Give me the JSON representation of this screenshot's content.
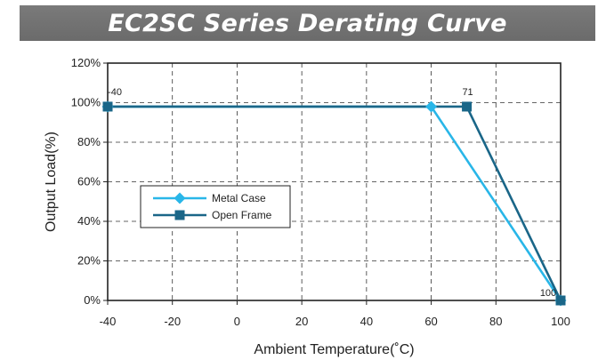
{
  "chart_data": {
    "type": "line",
    "title": "EC2SC Series Derating Curve",
    "xlabel": "Ambient Temperature(˚C)",
    "ylabel": "Output Load(%)",
    "xlim": [
      -40,
      100
    ],
    "ylim": [
      0,
      120
    ],
    "x_ticks": [
      "-40",
      "-20",
      "0",
      "20",
      "40",
      "60",
      "80",
      "100"
    ],
    "y_ticks": [
      "0%",
      "20%",
      "40%",
      "60%",
      "80%",
      "100%",
      "120%"
    ],
    "grid": true,
    "legend_position": "middle-left",
    "series": [
      {
        "name": "Metal Case",
        "color": "#29b6e8",
        "marker": "diamond",
        "points": [
          [
            -40,
            98
          ],
          [
            60,
            98
          ],
          [
            100,
            0
          ]
        ]
      },
      {
        "name": "Open Frame",
        "color": "#1a6688",
        "marker": "square",
        "points": [
          [
            -40,
            98
          ],
          [
            71,
            98
          ],
          [
            100,
            0
          ]
        ]
      }
    ],
    "annotations": [
      {
        "text": "-40",
        "x": -40,
        "y": 98
      },
      {
        "text": "71",
        "x": 71,
        "y": 98
      },
      {
        "text": "100",
        "x": 100,
        "y": 0
      }
    ]
  }
}
